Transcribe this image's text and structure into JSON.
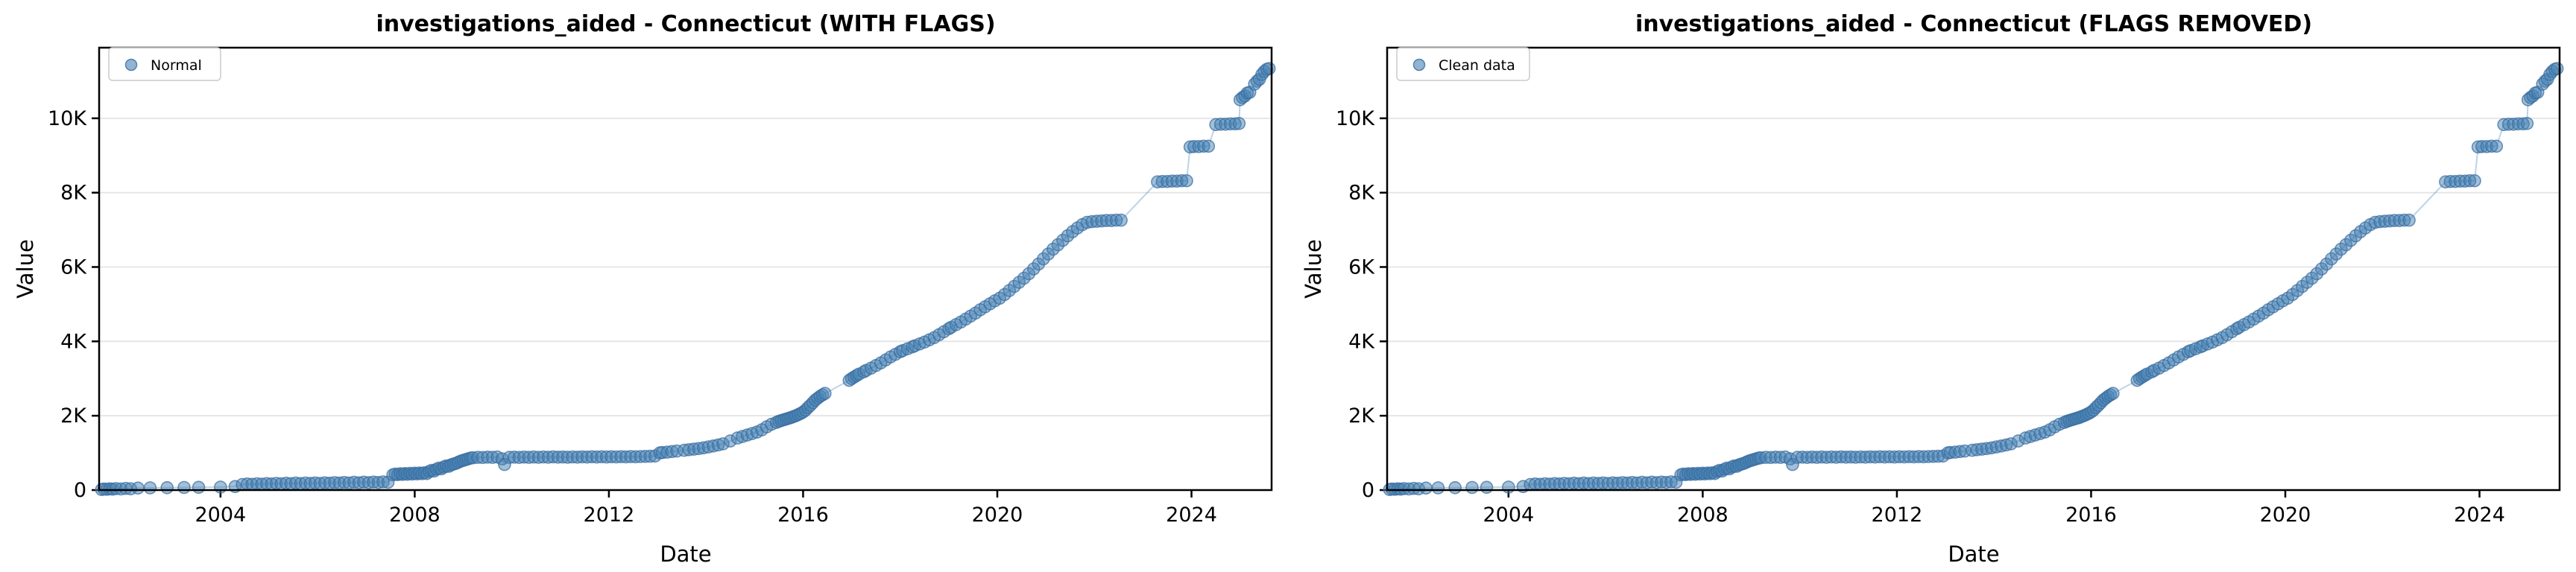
{
  "figure": {
    "background": "#ffffff"
  },
  "chart_data": {
    "type": "scatter",
    "xlabel": "Date",
    "ylabel": "Value",
    "xlim": [
      2001.5,
      2025.65
    ],
    "ylim": [
      0,
      11900
    ],
    "xticks": [
      2004,
      2008,
      2012,
      2016,
      2020,
      2024
    ],
    "yticks": [
      {
        "value": 0,
        "label": "0"
      },
      {
        "value": 2000,
        "label": "2K"
      },
      {
        "value": 4000,
        "label": "4K"
      },
      {
        "value": 6000,
        "label": "6K"
      },
      {
        "value": 8000,
        "label": "8K"
      },
      {
        "value": 10000,
        "label": "10K"
      }
    ],
    "grid": "horizontal",
    "legend_position": "upper-left",
    "colors": {
      "marker_fill": "#4682B4",
      "marker_edge": "#376b9e",
      "line": "#4682B4",
      "grid": "#e4e4e4",
      "spine": "#000000",
      "background": "#ffffff"
    },
    "charts": [
      {
        "title": "investigations_aided - Connecticut (WITH FLAGS)",
        "legend_label": "Normal"
      },
      {
        "title": "investigations_aided - Connecticut (FLAGS REMOVED)",
        "legend_label": "Clean data"
      }
    ],
    "points": [
      [
        2001.55,
        15
      ],
      [
        2001.6,
        30
      ],
      [
        2001.66,
        20
      ],
      [
        2001.72,
        35
      ],
      [
        2001.78,
        25
      ],
      [
        2001.85,
        40
      ],
      [
        2001.95,
        30
      ],
      [
        2002.05,
        45
      ],
      [
        2002.15,
        35
      ],
      [
        2002.3,
        55
      ],
      [
        2002.55,
        60
      ],
      [
        2002.9,
        65
      ],
      [
        2003.25,
        70
      ],
      [
        2003.55,
        75
      ],
      [
        2004.0,
        80
      ],
      [
        2004.3,
        95
      ],
      [
        2004.45,
        150
      ],
      [
        2004.55,
        165
      ],
      [
        2004.65,
        155
      ],
      [
        2004.75,
        170
      ],
      [
        2004.85,
        160
      ],
      [
        2004.95,
        175
      ],
      [
        2005.05,
        165
      ],
      [
        2005.15,
        180
      ],
      [
        2005.25,
        170
      ],
      [
        2005.35,
        185
      ],
      [
        2005.45,
        172
      ],
      [
        2005.55,
        188
      ],
      [
        2005.65,
        175
      ],
      [
        2005.75,
        190
      ],
      [
        2005.85,
        178
      ],
      [
        2005.95,
        192
      ],
      [
        2006.05,
        180
      ],
      [
        2006.15,
        195
      ],
      [
        2006.25,
        185
      ],
      [
        2006.35,
        200
      ],
      [
        2006.45,
        188
      ],
      [
        2006.55,
        205
      ],
      [
        2006.65,
        190
      ],
      [
        2006.75,
        208
      ],
      [
        2006.85,
        195
      ],
      [
        2006.95,
        212
      ],
      [
        2007.05,
        198
      ],
      [
        2007.15,
        215
      ],
      [
        2007.25,
        205
      ],
      [
        2007.35,
        220
      ],
      [
        2007.45,
        210
      ],
      [
        2007.55,
        410
      ],
      [
        2007.6,
        430
      ],
      [
        2007.65,
        415
      ],
      [
        2007.7,
        440
      ],
      [
        2007.75,
        420
      ],
      [
        2007.8,
        445
      ],
      [
        2007.85,
        425
      ],
      [
        2007.9,
        450
      ],
      [
        2007.95,
        430
      ],
      [
        2008.0,
        455
      ],
      [
        2008.05,
        435
      ],
      [
        2008.1,
        460
      ],
      [
        2008.15,
        440
      ],
      [
        2008.2,
        465
      ],
      [
        2008.25,
        445
      ],
      [
        2008.3,
        500
      ],
      [
        2008.35,
        530
      ],
      [
        2008.4,
        510
      ],
      [
        2008.45,
        560
      ],
      [
        2008.5,
        590
      ],
      [
        2008.55,
        570
      ],
      [
        2008.6,
        620
      ],
      [
        2008.65,
        650
      ],
      [
        2008.7,
        640
      ],
      [
        2008.75,
        680
      ],
      [
        2008.8,
        700
      ],
      [
        2008.85,
        720
      ],
      [
        2008.9,
        750
      ],
      [
        2008.95,
        780
      ],
      [
        2009.0,
        800
      ],
      [
        2009.05,
        820
      ],
      [
        2009.1,
        840
      ],
      [
        2009.15,
        860
      ],
      [
        2009.2,
        870
      ],
      [
        2009.3,
        880
      ],
      [
        2009.4,
        875
      ],
      [
        2009.5,
        885
      ],
      [
        2009.6,
        880
      ],
      [
        2009.7,
        890
      ],
      [
        2009.8,
        840
      ],
      [
        2009.85,
        690
      ],
      [
        2009.95,
        880
      ],
      [
        2010.05,
        885
      ],
      [
        2010.15,
        878
      ],
      [
        2010.25,
        888
      ],
      [
        2010.35,
        880
      ],
      [
        2010.45,
        890
      ],
      [
        2010.55,
        882
      ],
      [
        2010.65,
        892
      ],
      [
        2010.75,
        884
      ],
      [
        2010.85,
        894
      ],
      [
        2010.95,
        886
      ],
      [
        2011.05,
        890
      ],
      [
        2011.15,
        884
      ],
      [
        2011.25,
        892
      ],
      [
        2011.35,
        886
      ],
      [
        2011.45,
        894
      ],
      [
        2011.55,
        888
      ],
      [
        2011.65,
        895
      ],
      [
        2011.75,
        890
      ],
      [
        2011.85,
        896
      ],
      [
        2011.95,
        890
      ],
      [
        2012.05,
        896
      ],
      [
        2012.15,
        892
      ],
      [
        2012.25,
        898
      ],
      [
        2012.35,
        893
      ],
      [
        2012.45,
        900
      ],
      [
        2012.55,
        895
      ],
      [
        2012.65,
        902
      ],
      [
        2012.75,
        905
      ],
      [
        2012.85,
        910
      ],
      [
        2012.95,
        915
      ],
      [
        2013.05,
        1000
      ],
      [
        2013.1,
        1010
      ],
      [
        2013.2,
        1020
      ],
      [
        2013.3,
        1035
      ],
      [
        2013.4,
        1050
      ],
      [
        2013.55,
        1070
      ],
      [
        2013.65,
        1085
      ],
      [
        2013.75,
        1100
      ],
      [
        2013.85,
        1115
      ],
      [
        2013.95,
        1135
      ],
      [
        2014.05,
        1160
      ],
      [
        2014.15,
        1185
      ],
      [
        2014.25,
        1215
      ],
      [
        2014.35,
        1245
      ],
      [
        2014.5,
        1320
      ],
      [
        2014.65,
        1400
      ],
      [
        2014.75,
        1440
      ],
      [
        2014.85,
        1480
      ],
      [
        2014.95,
        1520
      ],
      [
        2015.05,
        1560
      ],
      [
        2015.15,
        1620
      ],
      [
        2015.25,
        1700
      ],
      [
        2015.35,
        1770
      ],
      [
        2015.45,
        1820
      ],
      [
        2015.5,
        1850
      ],
      [
        2015.55,
        1870
      ],
      [
        2015.6,
        1890
      ],
      [
        2015.65,
        1910
      ],
      [
        2015.7,
        1930
      ],
      [
        2015.75,
        1950
      ],
      [
        2015.8,
        1975
      ],
      [
        2015.85,
        2000
      ],
      [
        2015.9,
        2030
      ],
      [
        2015.95,
        2060
      ],
      [
        2016.0,
        2100
      ],
      [
        2016.05,
        2150
      ],
      [
        2016.1,
        2220
      ],
      [
        2016.15,
        2280
      ],
      [
        2016.2,
        2350
      ],
      [
        2016.25,
        2420
      ],
      [
        2016.3,
        2470
      ],
      [
        2016.35,
        2520
      ],
      [
        2016.4,
        2560
      ],
      [
        2016.45,
        2600
      ],
      [
        2016.95,
        2950
      ],
      [
        2017.0,
        3000
      ],
      [
        2017.05,
        3040
      ],
      [
        2017.1,
        3080
      ],
      [
        2017.15,
        3120
      ],
      [
        2017.25,
        3180
      ],
      [
        2017.3,
        3220
      ],
      [
        2017.4,
        3280
      ],
      [
        2017.5,
        3350
      ],
      [
        2017.6,
        3420
      ],
      [
        2017.7,
        3500
      ],
      [
        2017.8,
        3580
      ],
      [
        2017.9,
        3650
      ],
      [
        2018.0,
        3720
      ],
      [
        2018.05,
        3750
      ],
      [
        2018.15,
        3800
      ],
      [
        2018.25,
        3850
      ],
      [
        2018.3,
        3880
      ],
      [
        2018.4,
        3930
      ],
      [
        2018.5,
        3980
      ],
      [
        2018.6,
        4040
      ],
      [
        2018.7,
        4100
      ],
      [
        2018.8,
        4180
      ],
      [
        2018.9,
        4260
      ],
      [
        2019.0,
        4340
      ],
      [
        2019.05,
        4380
      ],
      [
        2019.15,
        4450
      ],
      [
        2019.25,
        4520
      ],
      [
        2019.35,
        4600
      ],
      [
        2019.45,
        4680
      ],
      [
        2019.55,
        4760
      ],
      [
        2019.65,
        4850
      ],
      [
        2019.75,
        4930
      ],
      [
        2019.85,
        5010
      ],
      [
        2019.95,
        5090
      ],
      [
        2020.05,
        5160
      ],
      [
        2020.15,
        5260
      ],
      [
        2020.25,
        5370
      ],
      [
        2020.35,
        5480
      ],
      [
        2020.45,
        5590
      ],
      [
        2020.55,
        5700
      ],
      [
        2020.65,
        5820
      ],
      [
        2020.75,
        5950
      ],
      [
        2020.85,
        6080
      ],
      [
        2020.95,
        6220
      ],
      [
        2021.05,
        6350
      ],
      [
        2021.15,
        6480
      ],
      [
        2021.25,
        6600
      ],
      [
        2021.35,
        6720
      ],
      [
        2021.45,
        6840
      ],
      [
        2021.55,
        6950
      ],
      [
        2021.65,
        7050
      ],
      [
        2021.75,
        7140
      ],
      [
        2021.85,
        7200
      ],
      [
        2021.95,
        7220
      ],
      [
        2022.05,
        7230
      ],
      [
        2022.15,
        7240
      ],
      [
        2022.25,
        7250
      ],
      [
        2022.35,
        7250
      ],
      [
        2022.45,
        7260
      ],
      [
        2022.55,
        7260
      ],
      [
        2023.3,
        8290
      ],
      [
        2023.4,
        8300
      ],
      [
        2023.5,
        8300
      ],
      [
        2023.6,
        8310
      ],
      [
        2023.7,
        8310
      ],
      [
        2023.8,
        8320
      ],
      [
        2023.9,
        8320
      ],
      [
        2023.97,
        9230
      ],
      [
        2024.05,
        9240
      ],
      [
        2024.15,
        9240
      ],
      [
        2024.25,
        9250
      ],
      [
        2024.35,
        9250
      ],
      [
        2024.5,
        9830
      ],
      [
        2024.6,
        9840
      ],
      [
        2024.7,
        9840
      ],
      [
        2024.8,
        9850
      ],
      [
        2024.9,
        9850
      ],
      [
        2024.98,
        9860
      ],
      [
        2025.0,
        10500
      ],
      [
        2025.05,
        10560
      ],
      [
        2025.1,
        10600
      ],
      [
        2025.15,
        10680
      ],
      [
        2025.2,
        10700
      ],
      [
        2025.3,
        10920
      ],
      [
        2025.35,
        11000
      ],
      [
        2025.4,
        11050
      ],
      [
        2025.45,
        11180
      ],
      [
        2025.5,
        11260
      ],
      [
        2025.55,
        11320
      ],
      [
        2025.6,
        11340
      ]
    ]
  }
}
